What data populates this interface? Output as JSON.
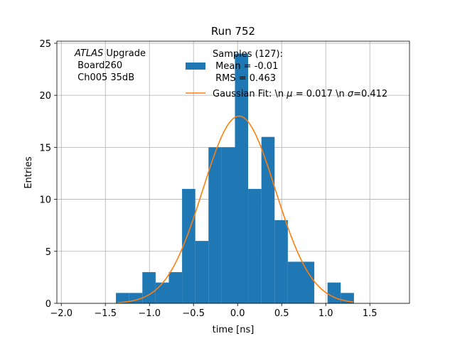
{
  "chart_data": {
    "type": "bar",
    "title": "Run 752",
    "xlabel": "time [ns]",
    "ylabel": "Entries",
    "xlim": [
      -2.05,
      1.95
    ],
    "ylim": [
      0,
      25.2
    ],
    "grid": true,
    "legend_placement": "top-right",
    "x_ticks": [
      -2.0,
      -1.5,
      -1.0,
      -0.5,
      0.0,
      0.5,
      1.0,
      1.5
    ],
    "x_tick_labels": [
      "−2.0",
      "−1.5",
      "−1.0",
      "−0.5",
      "0.0",
      "0.5",
      "1.0",
      "1.5"
    ],
    "y_ticks": [
      0,
      5,
      10,
      15,
      20,
      25
    ],
    "y_tick_labels": [
      "0",
      "5",
      "10",
      "15",
      "20",
      "25"
    ],
    "bin_edges": [
      -1.38,
      -1.23,
      -1.08,
      -0.93,
      -0.78,
      -0.63,
      -0.48,
      -0.33,
      -0.18,
      -0.03,
      0.12,
      0.27,
      0.42,
      0.57,
      0.72,
      0.87,
      1.02,
      1.17,
      1.32
    ],
    "bin_counts": [
      1,
      1,
      3,
      2,
      3,
      11,
      6,
      15,
      15,
      24,
      11,
      16,
      8,
      4,
      4,
      0,
      2,
      1
    ],
    "series": [
      {
        "name": "Samples (127):\n Mean = -0.01\n RMS = 0.463",
        "color": "#1f77b4",
        "kind": "histogram"
      },
      {
        "name": "Gaussian Fit: \\n $\\mu$ = 0.017 \\n $\\sigma$=0.412",
        "color": "#ff7f0e",
        "kind": "line",
        "amplitude": 18,
        "mu": 0.017,
        "sigma": 0.412,
        "x_range": [
          -1.36,
          1.31
        ]
      }
    ],
    "annotation": {
      "italic": "ATLAS",
      "rest": " Upgrade",
      "line2": " Board260",
      "line3": " Ch005 35dB"
    }
  },
  "legend": {
    "samples_line1": "Samples (127):",
    "samples_line2": " Mean = -0.01",
    "samples_line3": " RMS = 0.463",
    "gaussian_prefix": "Gaussian Fit: \\n ",
    "gaussian_mu_symbol": "μ",
    "gaussian_mid": " = 0.017 \\n ",
    "gaussian_sigma_symbol": "σ",
    "gaussian_suffix": "=0.412"
  }
}
